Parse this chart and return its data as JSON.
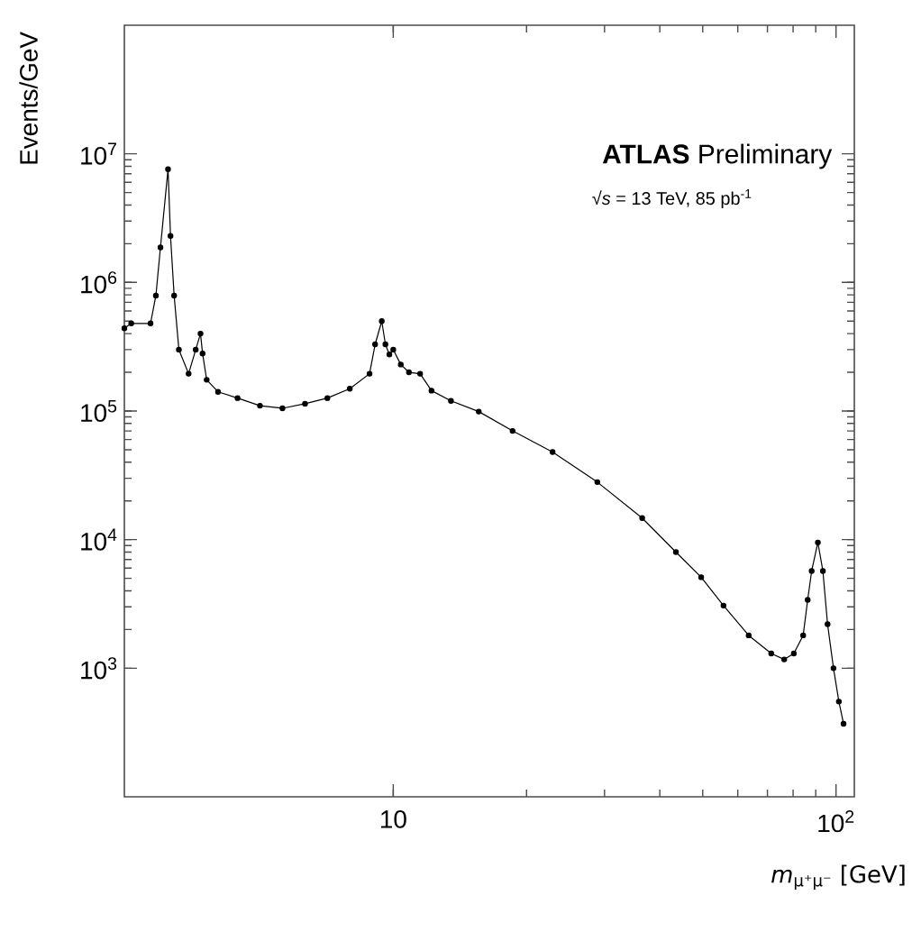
{
  "chart_data": {
    "type": "line",
    "log": "xy",
    "marker": "circle",
    "line_style": "solid",
    "xlabel": "*m*$_{μ⁺μ⁻}$ [GeV]",
    "ylabel": "Events/GeV",
    "annotations": [
      "**ATLAS** Preliminary",
      "√*s* = 13 TeV, 85 pb$^{-1}$"
    ],
    "xlim": [
      2.47,
      110
    ],
    "ylim": [
      100,
      100000000
    ],
    "xticks": [
      10,
      {
        "value": 100,
        "label": "10$^{2}$"
      }
    ],
    "yticks": [
      {
        "value": 1000,
        "label": "10$^{3}$"
      },
      {
        "value": 10000,
        "label": "10$^{4}$"
      },
      {
        "value": 100000,
        "label": "10$^{5}$"
      },
      {
        "value": 1000000,
        "label": "10$^{6}$"
      },
      {
        "value": 10000000,
        "label": "10$^{7}$"
      }
    ],
    "x": [
      2.47,
      2.56,
      2.83,
      2.91,
      2.98,
      3.1,
      3.14,
      3.2,
      3.28,
      3.45,
      3.58,
      3.67,
      3.71,
      3.79,
      4.02,
      4.45,
      5.0,
      5.62,
      6.32,
      7.1,
      7.98,
      8.84,
      9.1,
      9.42,
      9.6,
      9.8,
      10.0,
      10.4,
      10.85,
      11.5,
      12.2,
      13.5,
      15.6,
      18.6,
      22.9,
      28.9,
      36.5,
      43.5,
      49.6,
      55.7,
      63.5,
      71.4,
      76.4,
      80.3,
      84.3,
      86.3,
      88.1,
      91,
      93.4,
      95.7,
      98.7,
      101.5,
      104
    ],
    "series": [
      {
        "color": "#000000",
        "values": [
          440000,
          480000,
          480000,
          790000,
          1870000,
          7600000,
          2300000,
          790000,
          300000,
          195000,
          300000,
          400000,
          280000,
          175000,
          141000,
          126000,
          110000,
          105000,
          114000,
          126000,
          149000,
          195000,
          330000,
          500000,
          330000,
          275000,
          300000,
          230000,
          200000,
          195000,
          144000,
          120000,
          99000,
          70000,
          48000,
          28000,
          14700,
          8000,
          5100,
          3070,
          1800,
          1300,
          1170,
          1300,
          1800,
          3400,
          5700,
          9500,
          5700,
          2200,
          1000,
          550,
          370
        ]
      }
    ]
  }
}
